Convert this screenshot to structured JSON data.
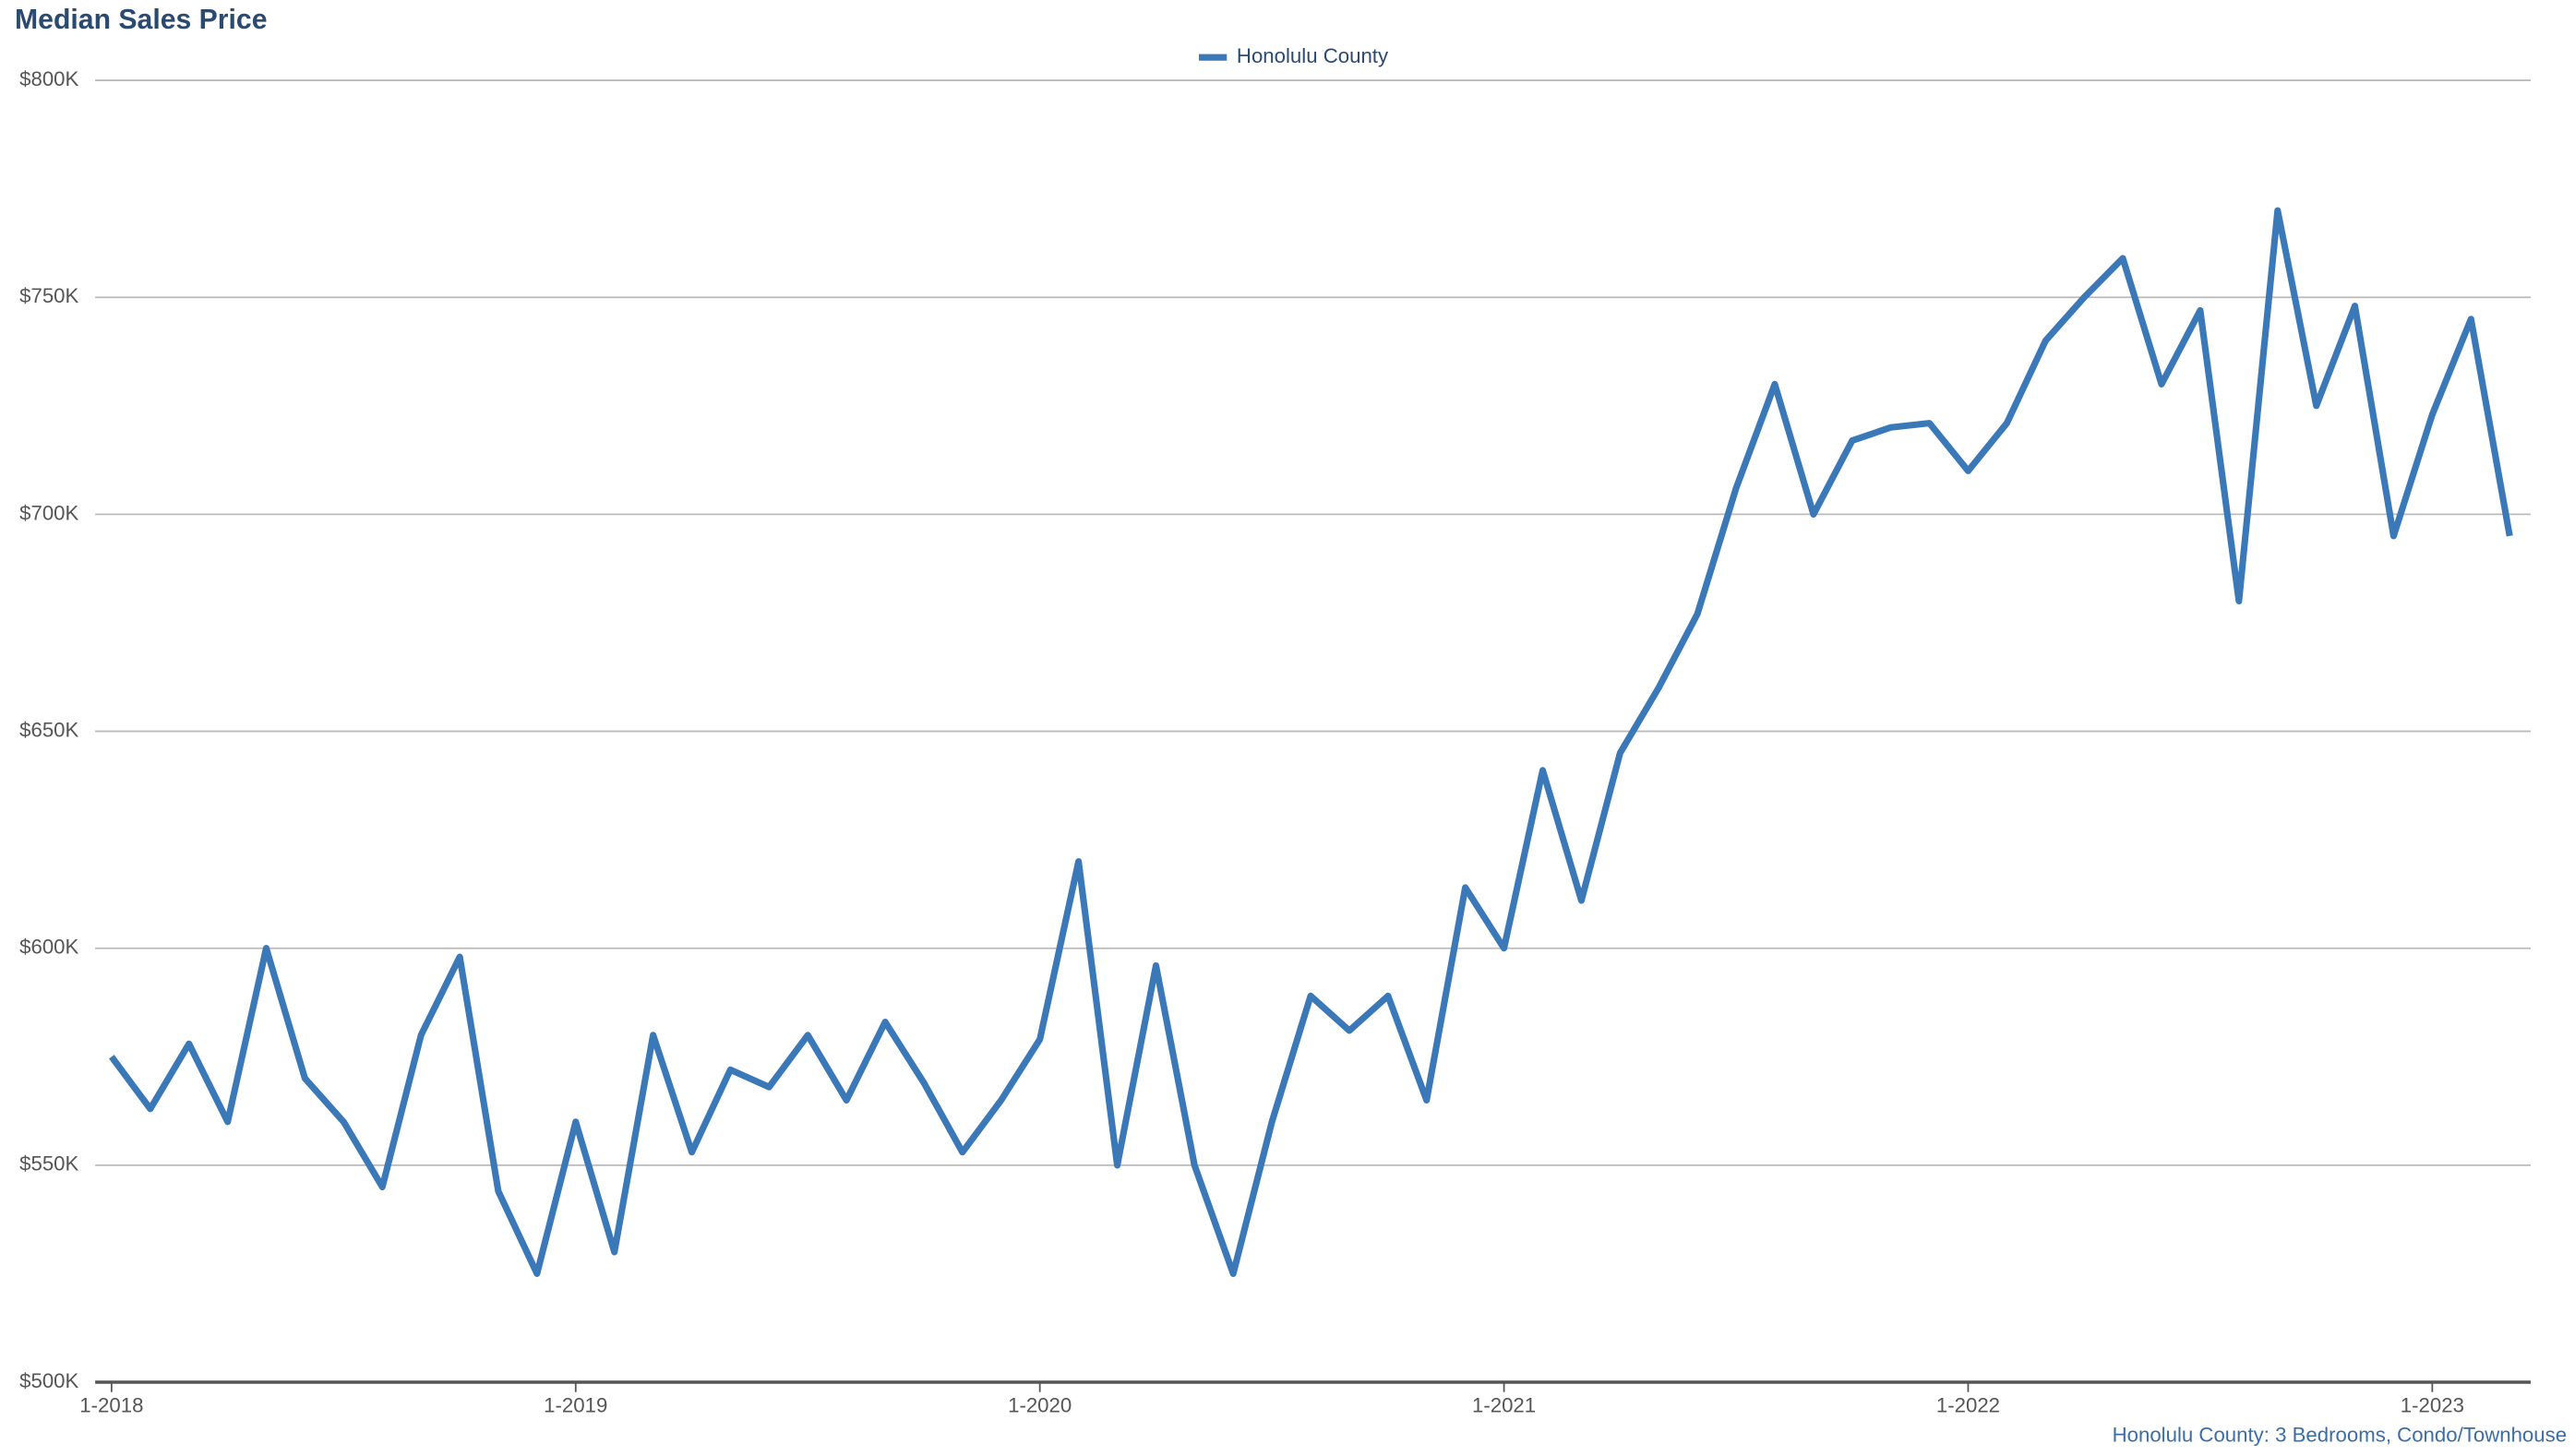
{
  "chart_data": {
    "type": "line",
    "title": "Median Sales Price",
    "x": [
      "1-2018",
      "2-2018",
      "3-2018",
      "4-2018",
      "5-2018",
      "6-2018",
      "7-2018",
      "8-2018",
      "9-2018",
      "10-2018",
      "11-2018",
      "12-2018",
      "1-2019",
      "2-2019",
      "3-2019",
      "4-2019",
      "5-2019",
      "6-2019",
      "7-2019",
      "8-2019",
      "9-2019",
      "10-2019",
      "11-2019",
      "12-2019",
      "1-2020",
      "2-2020",
      "3-2020",
      "4-2020",
      "5-2020",
      "6-2020",
      "7-2020",
      "8-2020",
      "9-2020",
      "10-2020",
      "11-2020",
      "12-2020",
      "1-2021",
      "2-2021",
      "3-2021",
      "4-2021",
      "5-2021",
      "6-2021",
      "7-2021",
      "8-2021",
      "9-2021",
      "10-2021",
      "11-2021",
      "12-2021",
      "1-2022",
      "2-2022",
      "3-2022",
      "4-2022",
      "5-2022",
      "6-2022",
      "7-2022",
      "8-2022",
      "9-2022",
      "10-2022",
      "11-2022",
      "12-2022",
      "1-2023",
      "2-2023",
      "3-2023"
    ],
    "series": [
      {
        "name": "Honolulu County",
        "color": "#3a78b8",
        "values": [
          575000,
          563000,
          578000,
          560000,
          600000,
          570000,
          560000,
          545000,
          580000,
          598000,
          544000,
          525000,
          560000,
          530000,
          580000,
          553000,
          572000,
          568000,
          580000,
          565000,
          583000,
          569000,
          553000,
          565000,
          579000,
          620000,
          550000,
          596000,
          550000,
          525000,
          560000,
          589000,
          581000,
          589000,
          565000,
          614000,
          600000,
          641000,
          611000,
          645000,
          660000,
          677000,
          706000,
          730000,
          700000,
          717000,
          720000,
          721000,
          710000,
          721000,
          740000,
          750000,
          759000,
          730000,
          747000,
          680000,
          770000,
          725000,
          748000,
          695000,
          723000,
          745000,
          695000
        ]
      }
    ],
    "ylim": [
      500000,
      800000
    ],
    "yticks": [
      {
        "value": 500000,
        "label": "$500K"
      },
      {
        "value": 550000,
        "label": "$550K"
      },
      {
        "value": 600000,
        "label": "$600K"
      },
      {
        "value": 650000,
        "label": "$650K"
      },
      {
        "value": 700000,
        "label": "$700K"
      },
      {
        "value": 750000,
        "label": "$750K"
      },
      {
        "value": 800000,
        "label": "$800K"
      }
    ],
    "xticks": [
      "1-2018",
      "1-2019",
      "1-2020",
      "1-2021",
      "1-2022",
      "1-2023"
    ],
    "grid": true,
    "legend": "top",
    "footnote": "Honolulu County: 3 Bedrooms, Condo/Townhouse"
  }
}
